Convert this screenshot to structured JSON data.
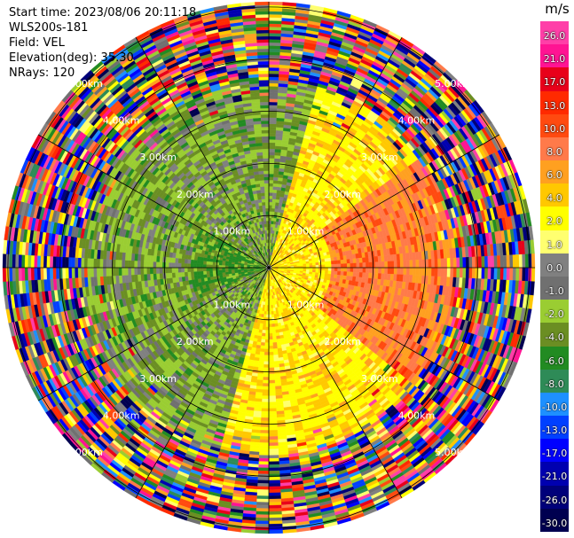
{
  "info": {
    "start_time": "Start time: 2023/08/06 20:11:18",
    "instrument": "WLS200s-181",
    "field": "Field: VEL",
    "elevation": "Elevation(deg): 35.30",
    "nrays": "NRays: 120"
  },
  "chart_data": {
    "type": "heatmap",
    "projection": "polar-ppi",
    "field": "VEL",
    "elevation_deg": 35.3,
    "nrays": 120,
    "range_rings_km": [
      1.0,
      2.0,
      3.0,
      4.0,
      5.0
    ],
    "range_ring_labels": [
      "1.00km",
      "2.00km",
      "3.00km",
      "4.00km",
      "5.00km"
    ],
    "colorbar": {
      "unit": "m/s",
      "ticks": [
        "26.0",
        "21.0",
        "17.0",
        "13.0",
        "10.0",
        "8.0",
        "6.0",
        "4.0",
        "2.0",
        "1.0",
        "0.0",
        "-1.0",
        "-2.0",
        "-4.0",
        "-6.0",
        "-8.0",
        "-10.0",
        "-13.0",
        "-17.0",
        "-21.0",
        "-26.0",
        "-30.0"
      ],
      "colors": [
        "#ff3fa8",
        "#ff1493",
        "#e8001a",
        "#ff2a00",
        "#ff4a10",
        "#ff7a4a",
        "#ffa020",
        "#ffc800",
        "#ffff00",
        "#ffff70",
        "#808080",
        "#707070",
        "#9acd32",
        "#6b8e23",
        "#228b22",
        "#2e8b57",
        "#1e90ff",
        "#0040ff",
        "#0000ff",
        "#0000b0",
        "#00007a",
        "#000050"
      ]
    }
  }
}
